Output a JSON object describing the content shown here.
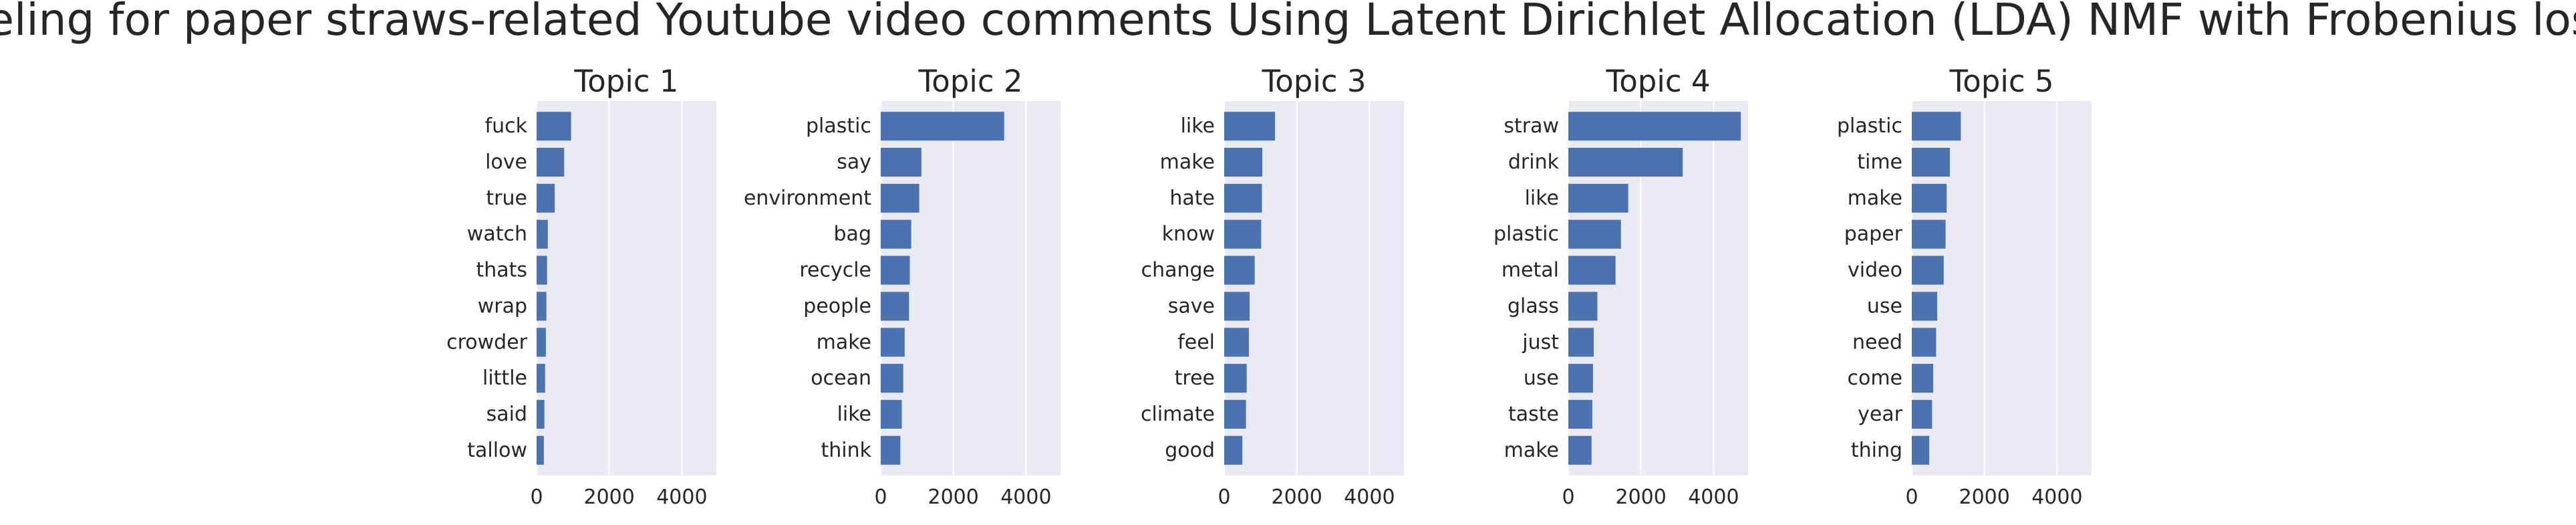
{
  "suptitle": "Topic modeling for paper straws-related Youtube video comments Using Latent Dirichlet Allocation (LDA) NMF with Frobenius loss function",
  "colors": {
    "bar": "#4c72b0",
    "panel_bg": "#eaeaf2",
    "grid": "#ffffff",
    "text": "#262626",
    "figure_bg": "#ffffff"
  },
  "chart_data": [
    {
      "type": "bar",
      "orientation": "horizontal",
      "title": "Topic 1",
      "categories": [
        "fuck",
        "love",
        "true",
        "watch",
        "thats",
        "wrap",
        "crowder",
        "little",
        "said",
        "tallow"
      ],
      "values": [
        950,
        760,
        500,
        310,
        290,
        270,
        255,
        235,
        215,
        200
      ],
      "xticks": [
        0,
        2000,
        4000
      ],
      "xlim": [
        0,
        4950
      ],
      "grid": true
    },
    {
      "type": "bar",
      "orientation": "horizontal",
      "title": "Topic 2",
      "categories": [
        "plastic",
        "say",
        "environment",
        "bag",
        "recycle",
        "people",
        "make",
        "ocean",
        "like",
        "think"
      ],
      "values": [
        3400,
        1120,
        1060,
        840,
        800,
        780,
        660,
        620,
        580,
        540
      ],
      "xticks": [
        0,
        2000,
        4000
      ],
      "xlim": [
        0,
        4950
      ],
      "grid": true
    },
    {
      "type": "bar",
      "orientation": "horizontal",
      "title": "Topic 3",
      "categories": [
        "like",
        "make",
        "hate",
        "know",
        "change",
        "save",
        "feel",
        "tree",
        "climate",
        "good"
      ],
      "values": [
        1400,
        1050,
        1040,
        1020,
        840,
        700,
        680,
        620,
        600,
        500
      ],
      "xticks": [
        0,
        2000,
        4000
      ],
      "xlim": [
        0,
        4950
      ],
      "grid": true
    },
    {
      "type": "bar",
      "orientation": "horizontal",
      "title": "Topic 4",
      "categories": [
        "straw",
        "drink",
        "like",
        "plastic",
        "metal",
        "glass",
        "just",
        "use",
        "taste",
        "make"
      ],
      "values": [
        4750,
        3150,
        1650,
        1450,
        1300,
        800,
        700,
        680,
        660,
        640
      ],
      "xticks": [
        0,
        2000,
        4000
      ],
      "xlim": [
        0,
        4950
      ],
      "grid": true
    },
    {
      "type": "bar",
      "orientation": "horizontal",
      "title": "Topic 5",
      "categories": [
        "plastic",
        "time",
        "make",
        "paper",
        "video",
        "use",
        "need",
        "come",
        "year",
        "thing"
      ],
      "values": [
        1350,
        1050,
        960,
        930,
        880,
        700,
        670,
        590,
        560,
        480
      ],
      "xticks": [
        0,
        2000,
        4000
      ],
      "xlim": [
        0,
        4950
      ],
      "grid": true
    }
  ]
}
